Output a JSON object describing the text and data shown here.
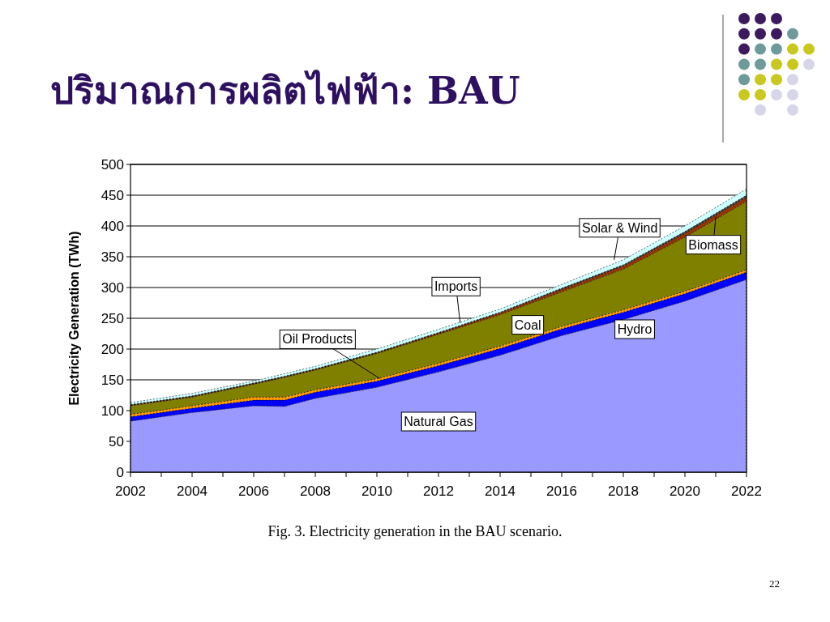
{
  "chart_data": {
    "type": "area",
    "stacked": true,
    "title": "ปริมาณการผลิตไฟฟ้า: BAU",
    "ylabel": "Electricity Generation (TWh)",
    "x": [
      2002,
      2004,
      2006,
      2007,
      2008,
      2010,
      2012,
      2014,
      2016,
      2018,
      2020,
      2022
    ],
    "series": [
      {
        "color": "#9999ff",
        "values": [
          83,
          97,
          108,
          107,
          120,
          138,
          163,
          190,
          222,
          248,
          278,
          313
        ]
      },
      {
        "color": "#0000ff",
        "values": [
          7,
          7,
          9,
          10,
          10,
          10,
          10,
          11,
          11,
          12,
          12,
          12
        ]
      },
      {
        "color": "#ff9900",
        "values": [
          4,
          4,
          5,
          5,
          4,
          4,
          4,
          4,
          4,
          4,
          4,
          4
        ]
      },
      {
        "color": "#808000",
        "values": [
          14,
          14,
          21,
          32,
          32,
          41,
          47,
          51,
          56,
          66,
          88,
          111
        ]
      },
      {
        "color": "#993300",
        "values": [
          1,
          1,
          1,
          1,
          1,
          1,
          2,
          3,
          4,
          5,
          6,
          7
        ]
      },
      {
        "color": "#404040",
        "values": [
          1,
          1,
          1,
          1,
          1,
          1,
          1,
          1,
          2,
          2,
          3,
          3
        ]
      },
      {
        "color": "#ccffff",
        "values": [
          3,
          4,
          3,
          4,
          4,
          5,
          5,
          5,
          6,
          8,
          9,
          10
        ]
      }
    ],
    "xlim": [
      2002,
      2022
    ],
    "ylim": [
      0,
      500
    ],
    "xticks": [
      2002,
      2004,
      2006,
      2008,
      2010,
      2012,
      2014,
      2016,
      2018,
      2020,
      2022
    ],
    "yticks": [
      0,
      50,
      100,
      150,
      200,
      250,
      300,
      350,
      400,
      450,
      500
    ],
    "grid": "y",
    "annotations": [
      {
        "text": "Solar & Wind",
        "x": 2017.7,
        "y": 345
      },
      {
        "text": "Biomass",
        "x": 2021,
        "y": 415
      },
      {
        "text": "Imports",
        "x": 2012.7,
        "y": 243
      },
      {
        "text": "Oil Products",
        "x": 2010.1,
        "y": 152
      },
      {
        "text": "Coal",
        "x": 2014.9,
        "y": 240
      },
      "Hydro",
      "Natural Gas",
      "Fig. 3.  Electricity generation in the BAU scenario.",
      "22"
    ]
  }
}
